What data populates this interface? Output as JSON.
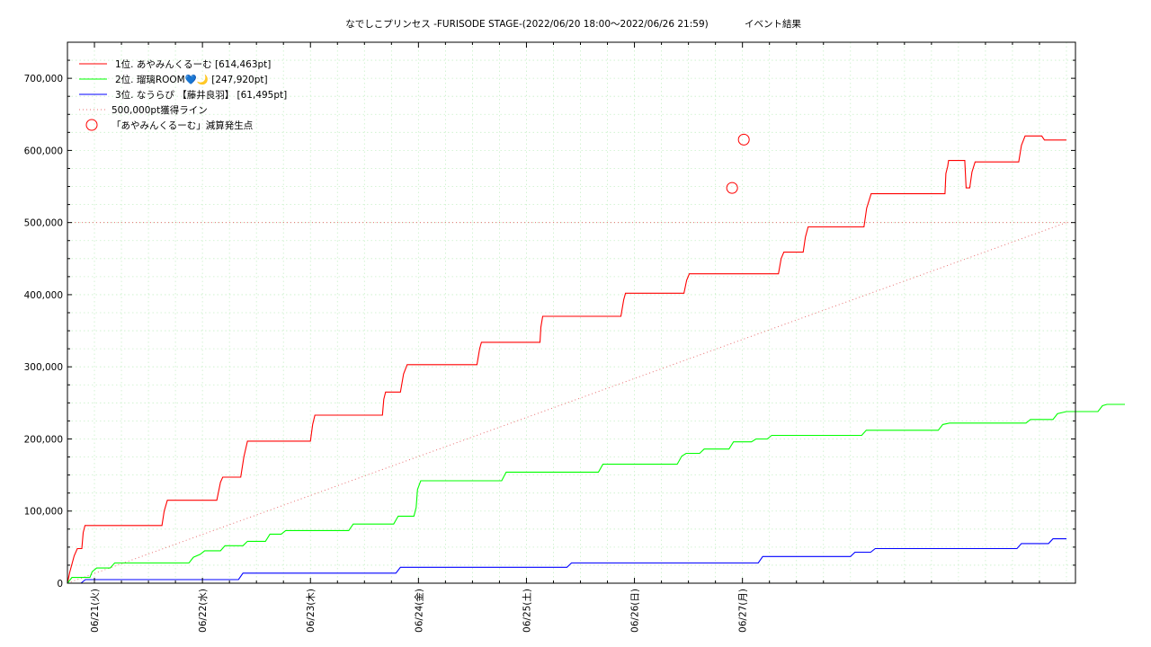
{
  "chart_data": {
    "type": "line",
    "title": "なでしこプリンセス -FURISODE STAGE-(2022/06/20 18:00～2022/06/26 21:59)",
    "subtitle": "イベント結果",
    "xlabel": "",
    "ylabel": "",
    "x_range": [
      "2022/06/20 18:00",
      "2022/06/26 21:59"
    ],
    "ylim": [
      0,
      750000
    ],
    "y_ticks": [
      0,
      100000,
      200000,
      300000,
      400000,
      500000,
      600000,
      700000
    ],
    "y_tick_labels": [
      "0",
      "100,000",
      "200,000",
      "300,000",
      "400,000",
      "500,000",
      "600,000",
      "700,000"
    ],
    "x_tick_labels": [
      "06/21(火)",
      "06/22(水)",
      "06/23(木)",
      "06/24(金)",
      "06/25(土)",
      "06/26(日)",
      "06/27(月)"
    ],
    "grid": true,
    "legend_position": "top-left",
    "threshold": {
      "name": "500,000pt獲得ライン",
      "value": 500000,
      "color": "#e87070"
    },
    "markers": {
      "name": "「あやみんくるーむ」減算発生点",
      "color": "#ff0000",
      "points": [
        [
          147.7,
          548000
        ],
        [
          150.3,
          615000
        ]
      ]
    },
    "series": [
      {
        "name": "1位. あやみんくるーむ [614,463pt]",
        "color": "#ff0000",
        "points": [
          [
            0,
            0
          ],
          [
            0.5,
            15000
          ],
          [
            1.5,
            38000
          ],
          [
            2.2,
            48000
          ],
          [
            3.2,
            48000
          ],
          [
            3.5,
            70000
          ],
          [
            3.9,
            80000
          ],
          [
            21,
            80000
          ],
          [
            21.5,
            100000
          ],
          [
            22.2,
            115000
          ],
          [
            33.2,
            115000
          ],
          [
            34,
            140000
          ],
          [
            34.5,
            147000
          ],
          [
            38.5,
            147000
          ],
          [
            39.2,
            175000
          ],
          [
            40,
            197000
          ],
          [
            54,
            197000
          ],
          [
            54.5,
            220000
          ],
          [
            55,
            233000
          ],
          [
            70,
            233000
          ],
          [
            70.3,
            255000
          ],
          [
            70.7,
            265000
          ],
          [
            74,
            265000
          ],
          [
            74.7,
            290000
          ],
          [
            75.5,
            303000
          ],
          [
            91,
            303000
          ],
          [
            91.6,
            325000
          ],
          [
            92,
            334000
          ],
          [
            105,
            334000
          ],
          [
            105.2,
            355000
          ],
          [
            105.6,
            370000
          ],
          [
            123,
            370000
          ],
          [
            123.6,
            393000
          ],
          [
            124,
            402000
          ],
          [
            137,
            402000
          ],
          [
            137.6,
            420000
          ],
          [
            138.2,
            429000
          ],
          [
            158,
            429000
          ],
          [
            158.6,
            450000
          ],
          [
            159.2,
            459000
          ],
          [
            163.5,
            459000
          ],
          [
            164,
            480000
          ],
          [
            164.6,
            494000
          ],
          [
            177,
            494000
          ],
          [
            177.6,
            520000
          ],
          [
            178.6,
            540000
          ],
          [
            195,
            540000
          ],
          [
            195.2,
            568000
          ],
          [
            195.6,
            578000
          ],
          [
            195.8,
            586000
          ],
          [
            199.4,
            586000
          ],
          [
            199.7,
            548000
          ],
          [
            200.5,
            548000
          ],
          [
            201,
            570000
          ],
          [
            201.7,
            584000
          ],
          [
            211.4,
            584000
          ],
          [
            212,
            607000
          ],
          [
            212.8,
            620000
          ],
          [
            216.5,
            620000
          ],
          [
            217.1,
            614463
          ],
          [
            221.98,
            614463
          ]
        ]
      },
      {
        "name": "2位. 瑠璃ROOM💙🌙 [247,920pt]",
        "color": "#00ff00",
        "points": [
          [
            0,
            0
          ],
          [
            1,
            8000
          ],
          [
            5,
            8000
          ],
          [
            5.5,
            16000
          ],
          [
            6.5,
            21000
          ],
          [
            9.5,
            21000
          ],
          [
            10.5,
            28000
          ],
          [
            27,
            28000
          ],
          [
            28,
            36000
          ],
          [
            29.5,
            40000
          ],
          [
            30.5,
            45000
          ],
          [
            34,
            45000
          ],
          [
            35,
            52000
          ],
          [
            39,
            52000
          ],
          [
            40,
            58000
          ],
          [
            44,
            58000
          ],
          [
            45,
            68000
          ],
          [
            47.5,
            68000
          ],
          [
            48.5,
            73000
          ],
          [
            62.5,
            73000
          ],
          [
            63.5,
            82000
          ],
          [
            72.5,
            82000
          ],
          [
            73.5,
            93000
          ],
          [
            77,
            93000
          ],
          [
            77.5,
            105000
          ],
          [
            77.8,
            130000
          ],
          [
            78.5,
            142000
          ],
          [
            96.5,
            142000
          ],
          [
            97.5,
            154000
          ],
          [
            118,
            154000
          ],
          [
            119,
            165000
          ],
          [
            135.5,
            165000
          ],
          [
            136.5,
            176000
          ],
          [
            137.5,
            180000
          ],
          [
            140.5,
            180000
          ],
          [
            141.5,
            186000
          ],
          [
            147,
            186000
          ],
          [
            148,
            196000
          ],
          [
            152,
            196000
          ],
          [
            153,
            200000
          ],
          [
            155.5,
            200000
          ],
          [
            156.5,
            205000
          ],
          [
            176.5,
            205000
          ],
          [
            177.5,
            212000
          ],
          [
            193.5,
            212000
          ],
          [
            194.5,
            220000
          ],
          [
            196,
            222000
          ],
          [
            213,
            222000
          ],
          [
            214,
            227000
          ],
          [
            219,
            227000
          ],
          [
            220,
            235000
          ],
          [
            222,
            238000
          ],
          [
            229,
            238000
          ],
          [
            230,
            246000
          ],
          [
            231,
            247920
          ],
          [
            235,
            247920
          ]
        ]
      },
      {
        "name": "3位. なうらぴ 【藤井良羽】 [61,495pt]",
        "color": "#0000ff",
        "points": [
          [
            0,
            0
          ],
          [
            3,
            0
          ],
          [
            4,
            5000
          ],
          [
            38,
            5000
          ],
          [
            39,
            14000
          ],
          [
            73,
            14000
          ],
          [
            74,
            22000
          ],
          [
            111,
            22000
          ],
          [
            112,
            28000
          ],
          [
            153.5,
            28000
          ],
          [
            154.5,
            37000
          ],
          [
            174,
            37000
          ],
          [
            175,
            43000
          ],
          [
            178.5,
            43000
          ],
          [
            179.5,
            48000
          ],
          [
            211,
            48000
          ],
          [
            212,
            55000
          ],
          [
            218,
            55000
          ],
          [
            219,
            61495
          ],
          [
            222,
            61495
          ]
        ]
      }
    ]
  }
}
